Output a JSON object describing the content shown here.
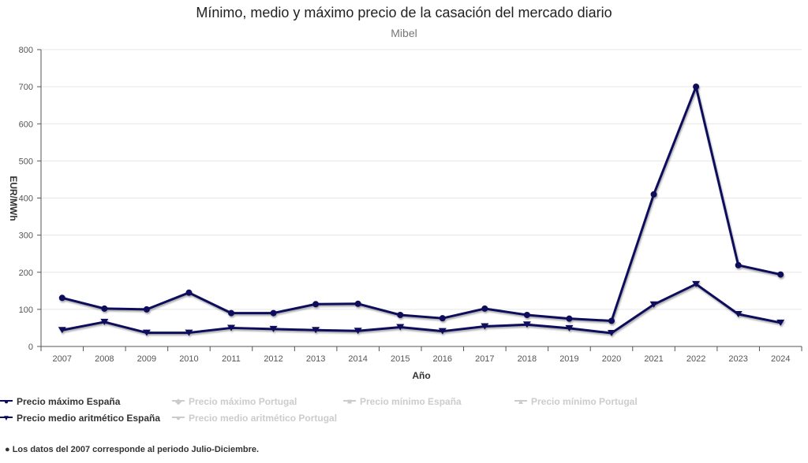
{
  "chart_data": {
    "type": "line",
    "title": "Mínimo, medio y máximo precio de la casación del mercado diario",
    "subtitle": "Mibel",
    "xlabel": "Año",
    "ylabel": "EUR/MWh",
    "ylim": [
      0,
      800
    ],
    "yticks": [
      "0",
      "100",
      "200",
      "300",
      "400",
      "500",
      "600",
      "700",
      "800"
    ],
    "categories": [
      "2007",
      "2008",
      "2009",
      "2010",
      "2011",
      "2012",
      "2013",
      "2014",
      "2015",
      "2016",
      "2017",
      "2018",
      "2019",
      "2020",
      "2021",
      "2022",
      "2023",
      "2024"
    ],
    "grid": true,
    "legend_position": "bottom-left",
    "series": [
      {
        "name": "Precio máximo España",
        "color": "#0b0b5c",
        "marker": "circle",
        "visible": true,
        "values": [
          131,
          102,
          100,
          145,
          90,
          90,
          114,
          115,
          85,
          76,
          102,
          85,
          75,
          69,
          410,
          700,
          219,
          194
        ]
      },
      {
        "name": "Precio medio aritmético España",
        "color": "#0b0b5c",
        "marker": "triangle-down",
        "visible": true,
        "values": [
          44,
          66,
          37,
          37,
          50,
          47,
          44,
          42,
          52,
          41,
          54,
          59,
          49,
          36,
          113,
          168,
          87,
          64
        ]
      }
    ],
    "legend": [
      {
        "name": "Precio máximo España",
        "visible": true,
        "marker": "circle"
      },
      {
        "name": "Precio máximo Portugal",
        "visible": false,
        "marker": "diamond"
      },
      {
        "name": "Precio mínimo España",
        "visible": false,
        "marker": "square"
      },
      {
        "name": "Precio mínimo Portugal",
        "visible": false,
        "marker": "triangle"
      },
      {
        "name": "Precio medio aritmético España",
        "visible": true,
        "marker": "triangle-down"
      },
      {
        "name": "Precio medio aritmético Portugal",
        "visible": false,
        "marker": "circle"
      }
    ],
    "footnote": "Los datos del 2007 corresponde al periodo Julio-Diciembre."
  },
  "colors": {
    "series": "#0b0b5c",
    "hidden_legend": "#cccccc",
    "grid": "#e6e6e6",
    "axis": "#555555"
  }
}
